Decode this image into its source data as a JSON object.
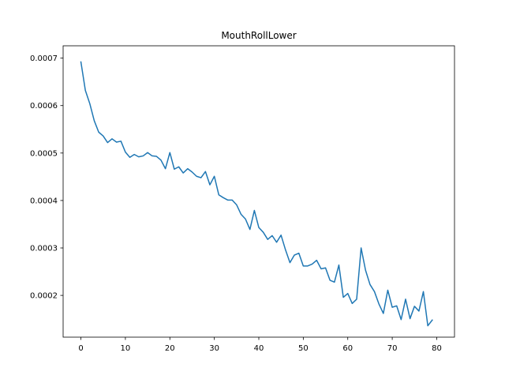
{
  "chart_data": {
    "type": "line",
    "title": "MouthRollLower",
    "xlabel": "",
    "ylabel": "",
    "xlim": [
      -4,
      84
    ],
    "ylim": [
      0.000112,
      0.000726
    ],
    "xticks": [
      0,
      10,
      20,
      30,
      40,
      50,
      60,
      70,
      80
    ],
    "yticks": [
      0.0002,
      0.0003,
      0.0004,
      0.0005,
      0.0006,
      0.0007
    ],
    "ytick_labels": [
      "0.0002",
      "0.0003",
      "0.0004",
      "0.0005",
      "0.0006",
      "0.0007"
    ],
    "grid": false,
    "series": [
      {
        "color": "#1f77b4",
        "x": [
          0,
          1,
          2,
          3,
          4,
          5,
          6,
          7,
          8,
          9,
          10,
          11,
          12,
          13,
          14,
          15,
          16,
          17,
          18,
          19,
          20,
          21,
          22,
          23,
          24,
          25,
          26,
          27,
          28,
          29,
          30,
          31,
          32,
          33,
          34,
          35,
          36,
          37,
          38,
          39,
          40,
          41,
          42,
          43,
          44,
          45,
          46,
          47,
          48,
          49,
          50,
          51,
          52,
          53,
          54,
          55,
          56,
          57,
          58,
          59,
          60,
          61,
          62,
          63,
          64,
          65,
          66,
          67,
          68,
          69,
          70,
          71,
          72,
          73,
          74,
          75,
          76,
          77,
          78,
          79
        ],
        "values": [
          0.000692,
          0.000632,
          0.000604,
          0.000568,
          0.000544,
          0.000536,
          0.000522,
          0.00053,
          0.000523,
          0.000525,
          0.000502,
          0.000491,
          0.000497,
          0.000492,
          0.000494,
          0.000501,
          0.000494,
          0.000493,
          0.000485,
          0.000467,
          0.000501,
          0.000466,
          0.000471,
          0.000458,
          0.000467,
          0.00046,
          0.000451,
          0.000448,
          0.000461,
          0.000433,
          0.000451,
          0.000412,
          0.000406,
          0.000401,
          0.000401,
          0.000391,
          0.000371,
          0.000361,
          0.000339,
          0.000379,
          0.000343,
          0.000333,
          0.000318,
          0.000326,
          0.000312,
          0.000327,
          0.000296,
          0.000269,
          0.000285,
          0.000289,
          0.000262,
          0.000262,
          0.000266,
          0.000274,
          0.000256,
          0.000258,
          0.000232,
          0.000228,
          0.000264,
          0.000196,
          0.000204,
          0.000183,
          0.000192,
          0.0003,
          0.000253,
          0.000223,
          0.000208,
          0.000182,
          0.000162,
          0.000211,
          0.000175,
          0.000178,
          0.000149,
          0.000192,
          0.000151,
          0.000177,
          0.000167,
          0.000208,
          0.000136,
          0.000148
        ]
      }
    ]
  }
}
